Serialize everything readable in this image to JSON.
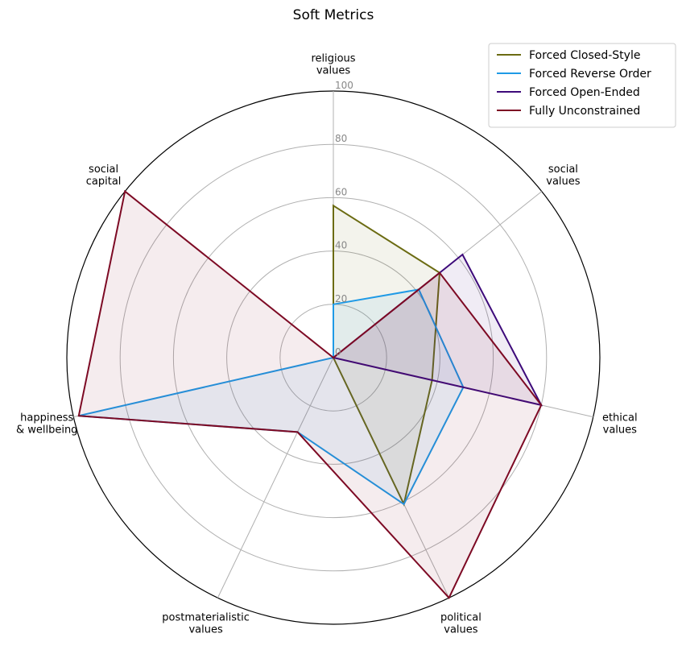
{
  "chart_data": {
    "type": "radar",
    "title": "Soft Metrics",
    "axes": [
      [
        "religious",
        "values"
      ],
      [
        "social",
        "values"
      ],
      [
        "ethical",
        "values"
      ],
      [
        "political",
        "values"
      ],
      [
        "postmaterialistic",
        "values"
      ],
      [
        "happiness",
        "& wellbeing"
      ],
      [
        "social",
        "capital"
      ]
    ],
    "rlim": [
      0,
      100
    ],
    "ticks": [
      "0",
      "20",
      "40",
      "60",
      "80",
      "100"
    ],
    "tick_values": [
      0,
      20,
      40,
      60,
      80,
      100
    ],
    "legend_position": "top-right",
    "series": [
      {
        "name": "Forced Closed-Style",
        "color": "#6b6b12",
        "values": [
          57,
          51,
          38,
          61,
          0,
          0,
          0
        ]
      },
      {
        "name": "Forced Reverse Order",
        "color": "#1f9ae6",
        "values": [
          20,
          41,
          50,
          61,
          31,
          98,
          0
        ]
      },
      {
        "name": "Forced Open-Ended",
        "color": "#3d0a7a",
        "values": [
          0,
          62,
          80,
          0,
          0,
          0,
          0
        ]
      },
      {
        "name": "Fully Unconstrained",
        "color": "#7d0a24",
        "values": [
          0,
          51,
          80,
          100,
          31,
          98,
          100
        ]
      }
    ]
  }
}
